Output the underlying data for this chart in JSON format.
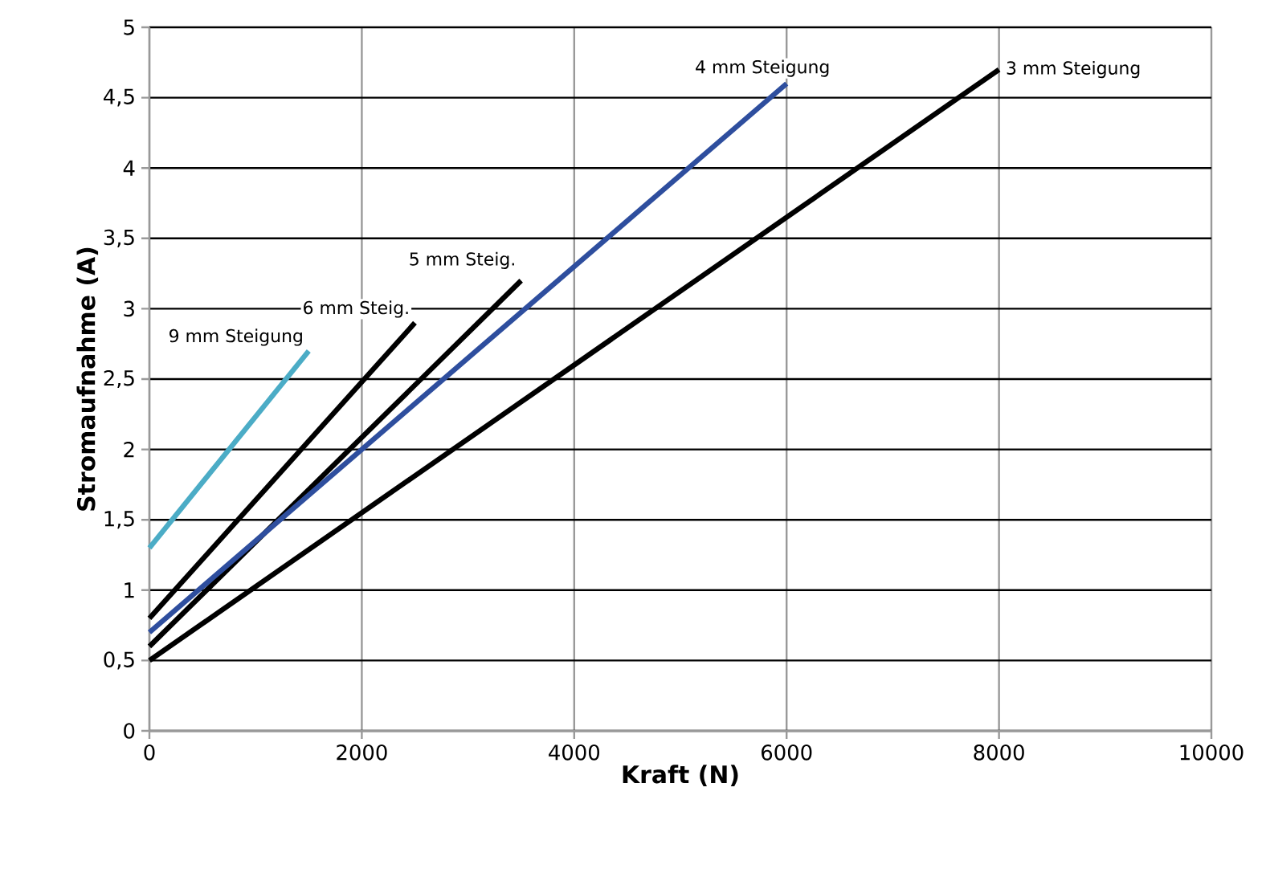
{
  "chart_data": {
    "type": "line",
    "xlabel": "Kraft (N)",
    "ylabel": "Stromaufnahme (A)",
    "xlim": [
      0,
      10000
    ],
    "ylim": [
      0,
      5
    ],
    "xticks": [
      0,
      2000,
      4000,
      6000,
      8000,
      10000
    ],
    "yticks": [
      0,
      {
        "value": 0.5,
        "label": "0,5"
      },
      1,
      {
        "value": 1.5,
        "label": "1,5"
      },
      2,
      {
        "value": 2.5,
        "label": "2,5"
      },
      3,
      {
        "value": 3.5,
        "label": "3,5"
      },
      4,
      {
        "value": 4.5,
        "label": "4,5"
      },
      5
    ],
    "grid": true,
    "marker": "none",
    "line_style": "solid",
    "series": [
      {
        "name": "9 mm Steigung",
        "color": "#4bacc6",
        "x": [
          0,
          1500
        ],
        "values": [
          1.3,
          2.7
        ]
      },
      {
        "name": "6 mm Steig.",
        "color": "#000000",
        "x": [
          0,
          2500
        ],
        "values": [
          0.8,
          2.9
        ]
      },
      {
        "name": "5 mm Steig.",
        "color": "#000000",
        "x": [
          0,
          3500
        ],
        "values": [
          0.6,
          3.2
        ]
      },
      {
        "name": "4 mm Steigung",
        "color": "#2e4e9e",
        "x": [
          0,
          6000
        ],
        "values": [
          0.7,
          4.6
        ]
      },
      {
        "name": "3 mm Steigung",
        "color": "#000000",
        "x": [
          0,
          8000
        ],
        "values": [
          0.5,
          4.7
        ]
      }
    ]
  }
}
